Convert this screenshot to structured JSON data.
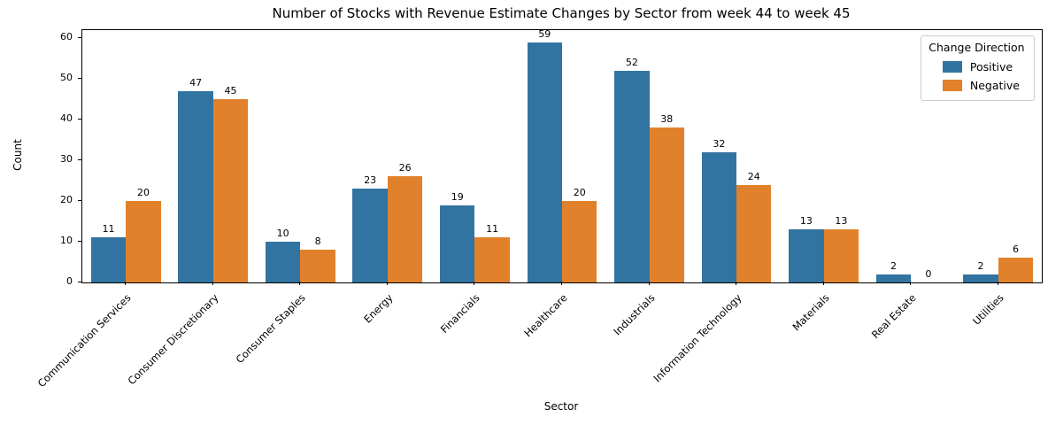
{
  "chart_data": {
    "type": "bar",
    "title": "Number of Stocks with Revenue Estimate Changes by Sector from week 44 to week 45",
    "xlabel": "Sector",
    "ylabel": "Count",
    "legend_title": "Change Direction",
    "legend_position": "upper right",
    "grid": false,
    "bar_labels": true,
    "ylim": [
      0,
      62
    ],
    "yticks": [
      0,
      10,
      20,
      30,
      40,
      50,
      60
    ],
    "categories": [
      "Communication Services",
      "Consumer Discretionary",
      "Consumer Staples",
      "Energy",
      "Financials",
      "Healthcare",
      "Industrials",
      "Information Technology",
      "Materials",
      "Real Estate",
      "Utilities"
    ],
    "series": [
      {
        "name": "Positive",
        "color": "#3274a1",
        "values": [
          11,
          47,
          10,
          23,
          19,
          59,
          52,
          32,
          13,
          2,
          2
        ]
      },
      {
        "name": "Negative",
        "color": "#e1812c",
        "values": [
          20,
          45,
          8,
          26,
          11,
          20,
          38,
          24,
          13,
          0,
          6
        ]
      }
    ]
  },
  "colors": {
    "positive": "#3274a1",
    "negative": "#e1812c",
    "spine": "#000000",
    "legend_border": "#cccccc",
    "background": "#ffffff"
  }
}
